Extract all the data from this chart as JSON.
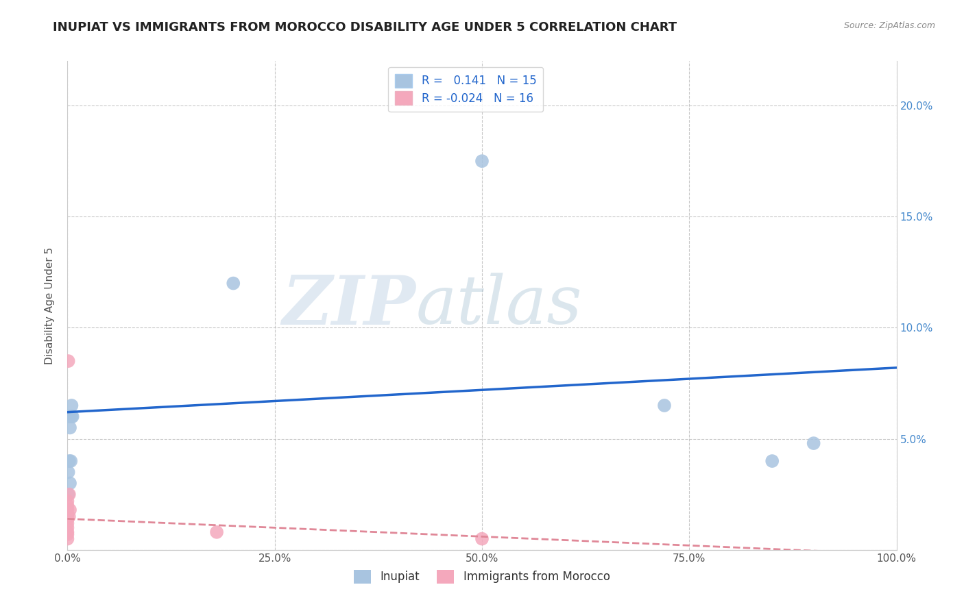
{
  "title": "INUPIAT VS IMMIGRANTS FROM MOROCCO DISABILITY AGE UNDER 5 CORRELATION CHART",
  "source": "Source: ZipAtlas.com",
  "ylabel": "Disability Age Under 5",
  "inupiat_x": [
    0.001,
    0.001,
    0.002,
    0.002,
    0.003,
    0.003,
    0.004,
    0.005,
    0.005,
    0.006,
    0.2,
    0.5,
    0.72,
    0.85,
    0.9
  ],
  "inupiat_y": [
    0.035,
    0.025,
    0.04,
    0.06,
    0.055,
    0.03,
    0.04,
    0.065,
    0.06,
    0.06,
    0.12,
    0.175,
    0.065,
    0.04,
    0.048
  ],
  "morocco_x": [
    0.0,
    0.0,
    0.0,
    0.0,
    0.0,
    0.0,
    0.0,
    0.0,
    0.0,
    0.0,
    0.001,
    0.002,
    0.002,
    0.003,
    0.18,
    0.5
  ],
  "morocco_y": [
    0.005,
    0.007,
    0.008,
    0.01,
    0.012,
    0.014,
    0.016,
    0.018,
    0.02,
    0.022,
    0.085,
    0.025,
    0.015,
    0.018,
    0.008,
    0.005
  ],
  "inupiat_color": "#a8c4e0",
  "morocco_color": "#f4a8bc",
  "inupiat_line_color": "#2266cc",
  "morocco_line_color": "#e08898",
  "R_inupiat": 0.141,
  "N_inupiat": 15,
  "R_morocco": -0.024,
  "N_morocco": 16,
  "xlim": [
    0.0,
    1.0
  ],
  "ylim": [
    0.0,
    0.22
  ],
  "x_ticks": [
    0.0,
    0.25,
    0.5,
    0.75,
    1.0
  ],
  "x_ticklabels": [
    "0.0%",
    "25.0%",
    "50.0%",
    "75.0%",
    "100.0%"
  ],
  "y_ticks": [
    0.0,
    0.05,
    0.1,
    0.15,
    0.2
  ],
  "y_ticklabels_left": [
    "",
    "",
    "",
    "",
    ""
  ],
  "y_ticklabels_right": [
    "",
    "5.0%",
    "10.0%",
    "15.0%",
    "20.0%"
  ],
  "background_color": "#ffffff",
  "grid_color": "#bbbbbb",
  "watermark_zip": "ZIP",
  "watermark_atlas": "atlas",
  "legend_labels": [
    "Inupiat",
    "Immigrants from Morocco"
  ],
  "title_fontsize": 13,
  "axis_label_fontsize": 11,
  "tick_fontsize": 11,
  "right_tick_color": "#4488cc",
  "inupiat_line_x": [
    0.0,
    1.0
  ],
  "inupiat_line_y": [
    0.062,
    0.082
  ],
  "morocco_line_x": [
    0.0,
    1.0
  ],
  "morocco_line_y": [
    0.014,
    -0.002
  ]
}
